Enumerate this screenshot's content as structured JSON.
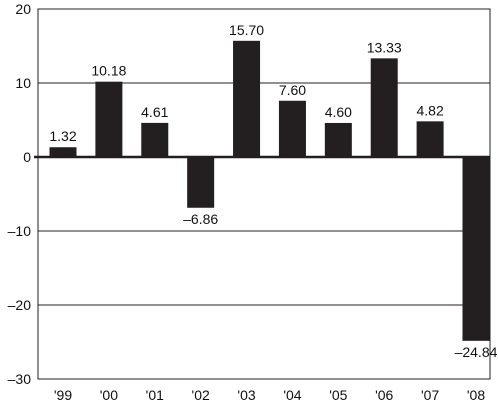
{
  "chart_data": {
    "type": "bar",
    "title": "",
    "xlabel": "",
    "ylabel": "",
    "categories": [
      "'99",
      "'00",
      "'01",
      "'02",
      "'03",
      "'04",
      "'05",
      "'06",
      "'07",
      "'08"
    ],
    "values": [
      1.32,
      10.18,
      4.61,
      -6.86,
      15.7,
      7.6,
      4.6,
      13.33,
      4.82,
      -24.84
    ],
    "data_labels": [
      "1.32",
      "10.18",
      "4.61",
      "–6.86",
      "15.70",
      "7.60",
      "4.60",
      "13.33",
      "4.82",
      "–24.84"
    ],
    "ylim": [
      -30,
      20
    ],
    "yticks": [
      20,
      10,
      0,
      -10,
      -20,
      -30
    ],
    "ytick_labels": [
      "20",
      "10",
      "0",
      "–10",
      "–20",
      "–30"
    ],
    "grid": true,
    "legend": "none",
    "bar_color": "#231f20",
    "grid_color": "#231f20"
  }
}
